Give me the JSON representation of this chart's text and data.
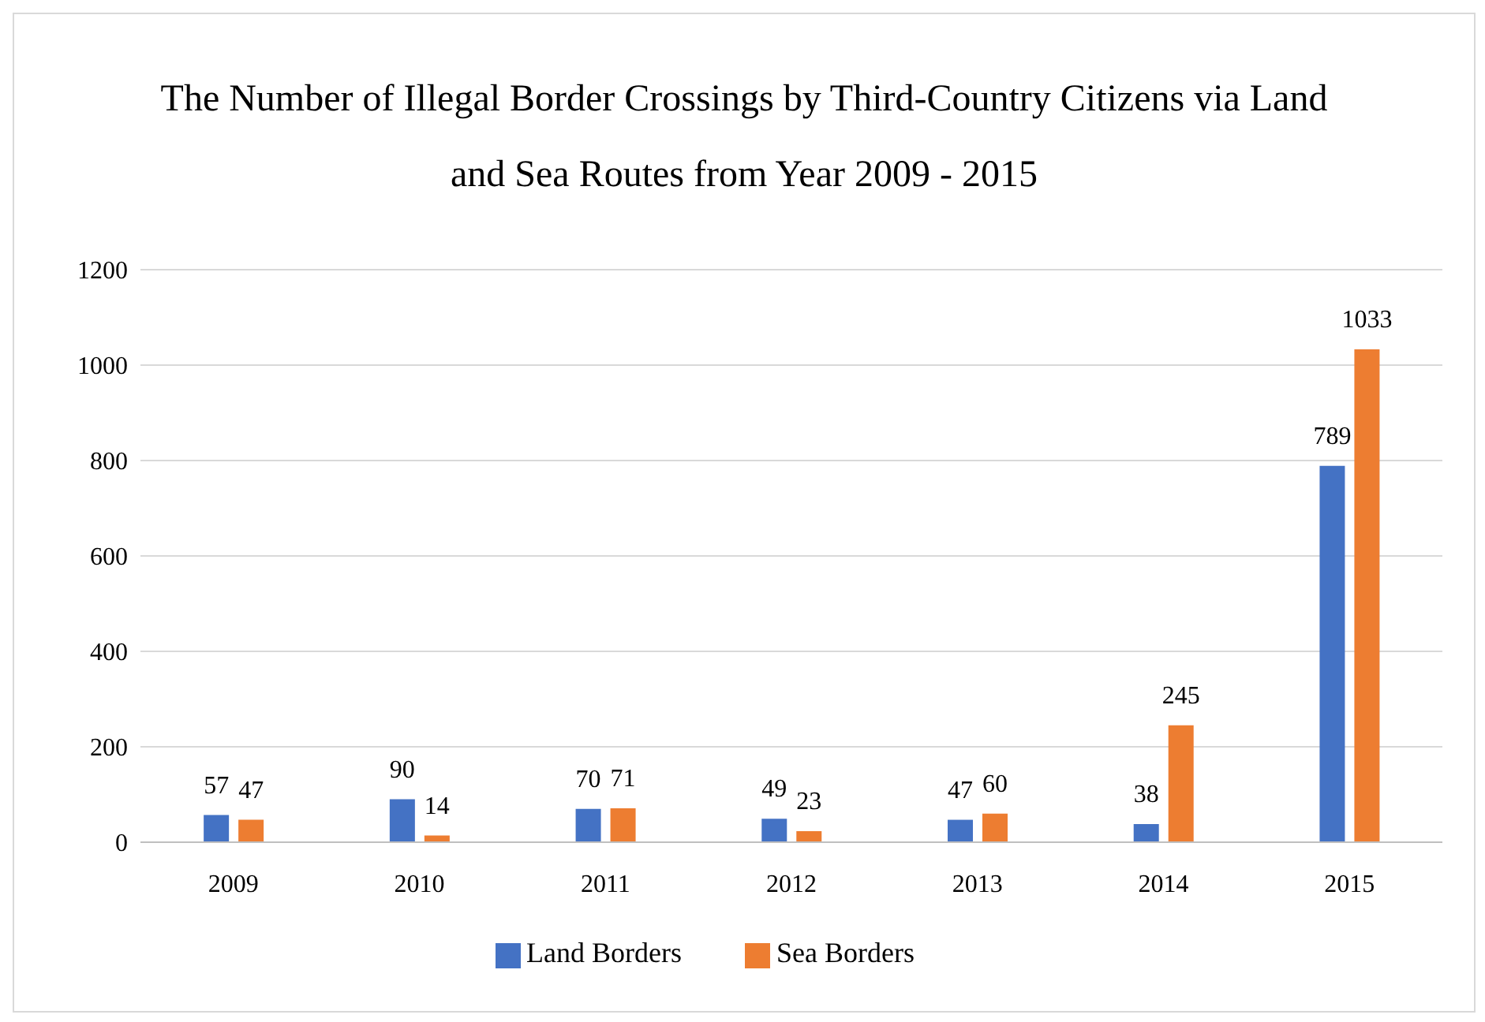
{
  "chart_data": {
    "type": "bar",
    "title": "The Number of Illegal Border Crossings by Third-Country Citizens via Land and Sea Routes from Year 2009 - 2015",
    "categories": [
      "2009",
      "2010",
      "2011",
      "2012",
      "2013",
      "2014",
      "2015"
    ],
    "series": [
      {
        "name": "Land Borders",
        "color": "#4472c4",
        "values": [
          57,
          90,
          70,
          49,
          47,
          38,
          789
        ]
      },
      {
        "name": "Sea Borders",
        "color": "#ed7d31",
        "values": [
          47,
          14,
          71,
          23,
          60,
          245,
          1033
        ]
      }
    ],
    "ylim": [
      0,
      1200
    ],
    "yticks": [
      0,
      200,
      400,
      600,
      800,
      1000,
      1200
    ],
    "grid": "y",
    "legend": "bottom",
    "data_labels": true
  }
}
